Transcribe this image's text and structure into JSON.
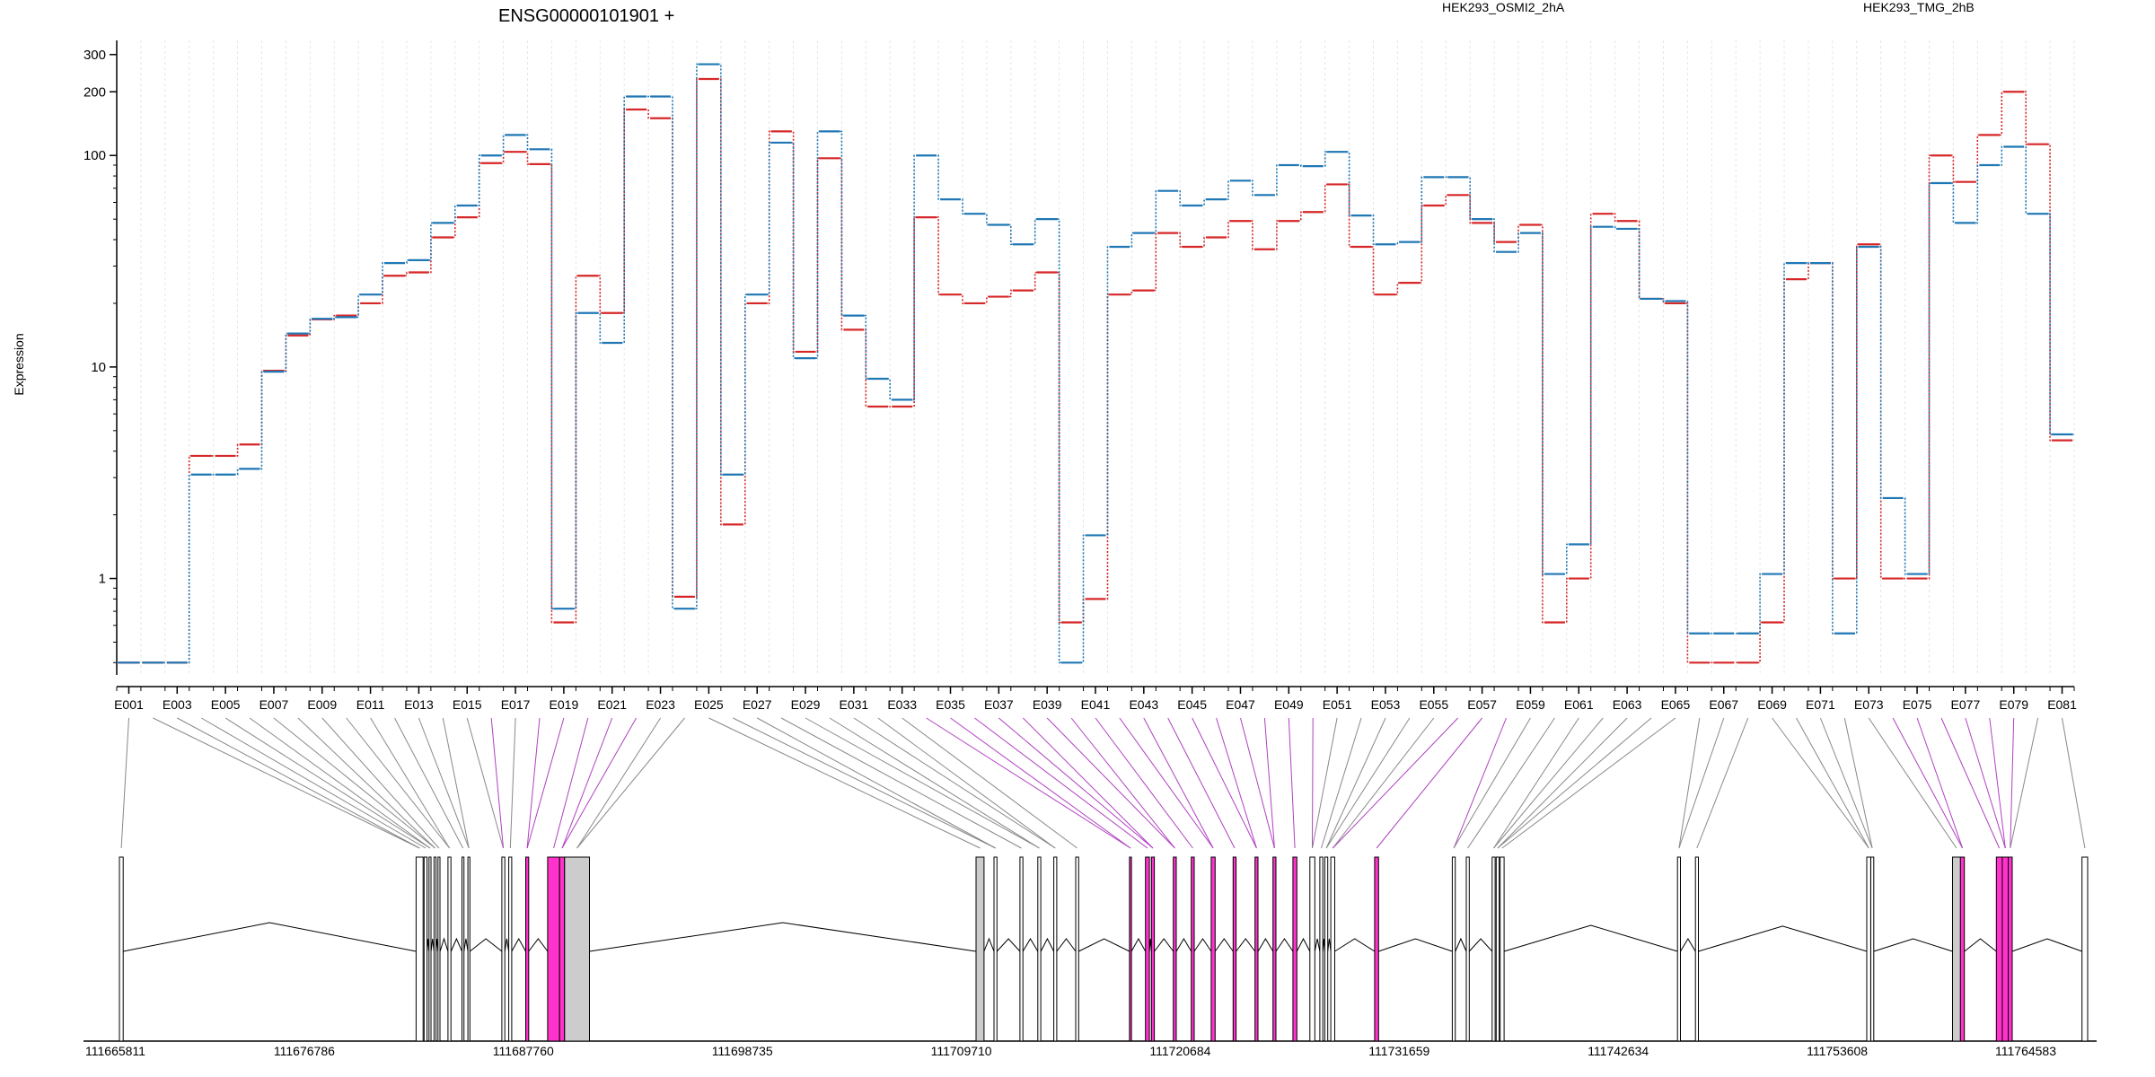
{
  "title": "ENSG00000101901 +",
  "ylabel": "Expression",
  "legend": [
    {
      "name": "HEK293_OSMI2_2hA",
      "color": "#d62728"
    },
    {
      "name": "HEK293_TMG_2hB",
      "color": "#1f77b4"
    }
  ],
  "chart_data": {
    "type": "line",
    "x": [
      "E001",
      "E002",
      "E003",
      "E004",
      "E005",
      "E006",
      "E007",
      "E008",
      "E009",
      "E010",
      "E011",
      "E012",
      "E013",
      "E014",
      "E015",
      "E016",
      "E017",
      "E018",
      "E019",
      "E020",
      "E021",
      "E022",
      "E023",
      "E024",
      "E025",
      "E026",
      "E027",
      "E028",
      "E029",
      "E030",
      "E031",
      "E032",
      "E033",
      "E034",
      "E035",
      "E036",
      "E037",
      "E038",
      "E039",
      "E040",
      "E041",
      "E042",
      "E043",
      "E044",
      "E045",
      "E046",
      "E047",
      "E048",
      "E049",
      "E050",
      "E051",
      "E052",
      "E053",
      "E054",
      "E055",
      "E056",
      "E057",
      "E058",
      "E059",
      "E060",
      "E061",
      "E062",
      "E063",
      "E064",
      "E065",
      "E066",
      "E067",
      "E068",
      "E069",
      "E070",
      "E071",
      "E072",
      "E073",
      "E074",
      "E075",
      "E076",
      "E077",
      "E078",
      "E079",
      "E080",
      "E081"
    ],
    "xticks": [
      "E001",
      "E003",
      "E005",
      "E007",
      "E009",
      "E011",
      "E013",
      "E015",
      "E017",
      "E019",
      "E021",
      "E023",
      "E025",
      "E027",
      "E029",
      "E031",
      "E033",
      "E035",
      "E037",
      "E039",
      "E041",
      "E043",
      "E045",
      "E047",
      "E049",
      "E051",
      "E053",
      "E055",
      "E057",
      "E059",
      "E061",
      "E063",
      "E065",
      "E067",
      "E069",
      "E071",
      "E073",
      "E075",
      "E077",
      "E079",
      "E081"
    ],
    "series": [
      {
        "name": "HEK293_OSMI2_2hA",
        "color": "#d62728",
        "values": [
          0.4,
          0.4,
          0.4,
          3.8,
          3.8,
          4.3,
          9.6,
          14.1,
          16.8,
          17.5,
          20.0,
          27.0,
          28.0,
          41.0,
          51.0,
          92.0,
          104.0,
          91.0,
          0.62,
          27.0,
          18.0,
          165.0,
          150.0,
          0.82,
          230.0,
          1.8,
          20.0,
          130.0,
          11.8,
          97.0,
          15.0,
          6.5,
          6.5,
          51.0,
          22.0,
          20.0,
          21.5,
          23.0,
          28.0,
          0.62,
          0.8,
          22.0,
          23.0,
          43.0,
          37.0,
          41.0,
          49.0,
          36.0,
          49.0,
          54.0,
          73.0,
          37.0,
          22.0,
          25.0,
          58.0,
          65.0,
          48.0,
          39.0,
          47.0,
          0.62,
          1.0,
          53.0,
          49.0,
          21.0,
          20.0,
          0.4,
          0.4,
          0.4,
          0.62,
          26.0,
          31.0,
          1.0,
          38.0,
          1.0,
          1.0,
          100.0,
          75.0,
          125.0,
          200.0,
          113.0,
          4.5
        ]
      },
      {
        "name": "HEK293_TMG_2hB",
        "color": "#1f77b4",
        "values": [
          0.4,
          0.4,
          0.4,
          3.1,
          3.1,
          3.3,
          9.5,
          14.4,
          16.9,
          17.2,
          22.0,
          31.0,
          32.0,
          48.0,
          58.0,
          100.0,
          125.0,
          107.0,
          0.72,
          18.0,
          13.0,
          190.0,
          190.0,
          0.72,
          270.0,
          3.1,
          22.0,
          115.0,
          11.0,
          130.0,
          17.5,
          8.8,
          7.0,
          100.0,
          62.0,
          53.0,
          47.0,
          38.0,
          50.0,
          0.4,
          1.6,
          37.0,
          43.0,
          68.0,
          58.0,
          62.0,
          76.0,
          65.0,
          90.0,
          89.0,
          104.0,
          52.0,
          38.0,
          39.0,
          79.0,
          79.0,
          50.0,
          35.0,
          43.0,
          1.05,
          1.45,
          46.0,
          45.0,
          21.0,
          20.5,
          0.55,
          0.55,
          0.55,
          1.05,
          31.0,
          31.0,
          0.55,
          37.0,
          2.4,
          1.05,
          74.0,
          48.0,
          90.0,
          110.0,
          53.0,
          4.8
        ]
      }
    ],
    "yscale": "log",
    "ylim": [
      0.35,
      350
    ],
    "yticks": [
      1,
      10,
      100,
      200,
      300
    ],
    "grid": "vertical",
    "legend_position": "top"
  },
  "gene_model": {
    "coordinates": [
      "111665811",
      "111676786",
      "111687760",
      "111698735",
      "111709710",
      "111720684",
      "111731659",
      "111742634",
      "111753608",
      "111764583"
    ],
    "coord_range": [
      111665811,
      111764583
    ],
    "highlighted": [
      "E016",
      "E018",
      "E019",
      "E020",
      "E021",
      "E022",
      "E034",
      "E035",
      "E036",
      "E037",
      "E038",
      "E039",
      "E040",
      "E041",
      "E042",
      "E043",
      "E044",
      "E045",
      "E046",
      "E047",
      "E048",
      "E049",
      "E050",
      "E056",
      "E057",
      "E058",
      "E074",
      "E075",
      "E076",
      "E077",
      "E078",
      "E079"
    ],
    "exons": [
      {
        "start": 111665811,
        "end": 111666000
      },
      {
        "start": 111680700,
        "end": 111681050
      },
      {
        "start": 111681100,
        "end": 111681250
      },
      {
        "start": 111681350,
        "end": 111681450
      },
      {
        "start": 111681600,
        "end": 111681700
      },
      {
        "start": 111681800,
        "end": 111681900
      },
      {
        "start": 111682300,
        "end": 111682450
      },
      {
        "start": 111683000,
        "end": 111683100
      },
      {
        "start": 111683300,
        "end": 111683400
      },
      {
        "start": 111685000,
        "end": 111685150
      },
      {
        "start": 111685350,
        "end": 111685500
      },
      {
        "start": 111686200,
        "end": 111686350
      },
      {
        "start": 111687300,
        "end": 111687900
      },
      {
        "start": 111687900,
        "end": 111688150
      },
      {
        "start": 111688150,
        "end": 111689400
      },
      {
        "start": 111708800,
        "end": 111709200
      },
      {
        "start": 111709700,
        "end": 111709850
      },
      {
        "start": 111711000,
        "end": 111711150
      },
      {
        "start": 111711900,
        "end": 111712050
      },
      {
        "start": 111712700,
        "end": 111712850
      },
      {
        "start": 111713800,
        "end": 111713950
      },
      {
        "start": 111716500,
        "end": 111716600
      },
      {
        "start": 111717300,
        "end": 111717500
      },
      {
        "start": 111717600,
        "end": 111717750
      },
      {
        "start": 111718700,
        "end": 111718850
      },
      {
        "start": 111719600,
        "end": 111719750
      },
      {
        "start": 111720600,
        "end": 111720800
      },
      {
        "start": 111721700,
        "end": 111721850
      },
      {
        "start": 111722800,
        "end": 111722950
      },
      {
        "start": 111723700,
        "end": 111723850
      },
      {
        "start": 111724700,
        "end": 111724900
      },
      {
        "start": 111725550,
        "end": 111725800
      },
      {
        "start": 111726050,
        "end": 111726200
      },
      {
        "start": 111726300,
        "end": 111726450
      },
      {
        "start": 111726600,
        "end": 111726800
      },
      {
        "start": 111728800,
        "end": 111729000
      },
      {
        "start": 111732700,
        "end": 111732850
      },
      {
        "start": 111733400,
        "end": 111733550
      },
      {
        "start": 111734700,
        "end": 111734850
      },
      {
        "start": 111734900,
        "end": 111735050
      },
      {
        "start": 111735100,
        "end": 111735300
      },
      {
        "start": 111744000,
        "end": 111744150
      },
      {
        "start": 111744900,
        "end": 111745050
      },
      {
        "start": 111753500,
        "end": 111753700
      },
      {
        "start": 111753700,
        "end": 111753850
      },
      {
        "start": 111757800,
        "end": 111758200
      },
      {
        "start": 111758200,
        "end": 111758400
      },
      {
        "start": 111760000,
        "end": 111760300
      },
      {
        "start": 111760300,
        "end": 111760600
      },
      {
        "start": 111760600,
        "end": 111760800
      },
      {
        "start": 111764300,
        "end": 111764583
      }
    ]
  }
}
